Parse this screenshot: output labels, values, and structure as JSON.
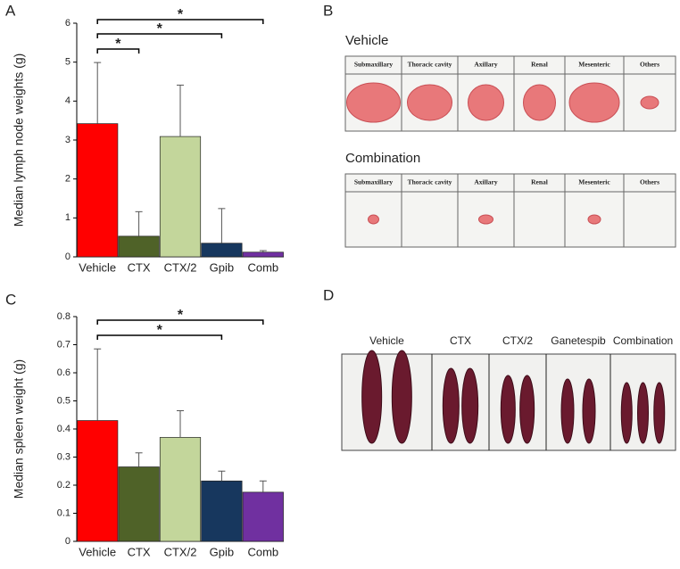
{
  "panel_labels": [
    "A",
    "B",
    "C",
    "D"
  ],
  "chart_data": [
    {
      "type": "bar",
      "ylabel": "Median lymph node weights (g)",
      "categories": [
        "Vehicle",
        "CTX",
        "CTX/2",
        "Gpib",
        "Comb"
      ],
      "values": [
        3.42,
        0.53,
        3.09,
        0.35,
        0.12
      ],
      "errors": [
        1.57,
        0.63,
        1.32,
        0.89,
        0.04
      ],
      "colors": [
        "#ff0000",
        "#4f6228",
        "#c3d69b",
        "#17375e",
        "#7030a0"
      ],
      "ylim": [
        0,
        6
      ],
      "yticks": [
        0,
        1,
        2,
        3,
        4,
        5,
        6
      ],
      "significance": [
        {
          "between": [
            "Vehicle",
            "Comb"
          ],
          "label": "*"
        },
        {
          "between": [
            "Vehicle",
            "Gpib"
          ],
          "label": "*"
        },
        {
          "between": [
            "Vehicle",
            "CTX"
          ],
          "label": "*"
        }
      ]
    },
    {
      "type": "bar",
      "ylabel": "Median spleen weight (g)",
      "categories": [
        "Vehicle",
        "CTX",
        "CTX/2",
        "Gpib",
        "Comb"
      ],
      "values": [
        0.43,
        0.265,
        0.37,
        0.215,
        0.175
      ],
      "errors": [
        0.255,
        0.05,
        0.095,
        0.035,
        0.04
      ],
      "colors": [
        "#ff0000",
        "#4f6228",
        "#c3d69b",
        "#17375e",
        "#7030a0"
      ],
      "ylim": [
        0,
        0.8
      ],
      "yticks": [
        0,
        0.1,
        0.2,
        0.3,
        0.4,
        0.5,
        0.6,
        0.7,
        0.8
      ],
      "significance": [
        {
          "between": [
            "Vehicle",
            "Comb"
          ],
          "label": "*"
        },
        {
          "between": [
            "Vehicle",
            "Gpib"
          ],
          "label": "*"
        }
      ]
    }
  ],
  "photo_b": [
    {
      "title": "Vehicle",
      "columns": [
        "Submaxillary",
        "Thoracic cavity",
        "Axillary",
        "Renal",
        "Mesenteric",
        "Others"
      ]
    },
    {
      "title": "Combination",
      "columns": [
        "Submaxillary",
        "Thoracic cavity",
        "Axillary",
        "Renal",
        "Mesenteric",
        "Others"
      ]
    }
  ],
  "photo_d": [
    "Vehicle",
    "CTX",
    "CTX/2",
    "Ganetespib",
    "Combination"
  ]
}
